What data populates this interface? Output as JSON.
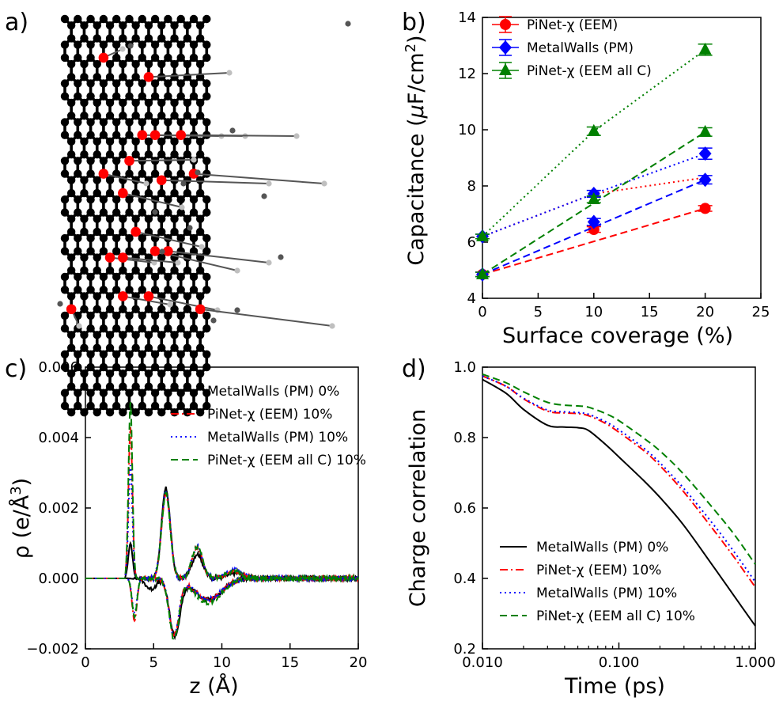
{
  "panel_labels": {
    "a": "a)",
    "b": "b)",
    "c": "c)",
    "d": "d)"
  },
  "colors": {
    "carbon": "#000000",
    "oxygen": "#ff0000",
    "hydrogen": "#bfbfbf",
    "red": "#ff0000",
    "blue": "#0000ff",
    "green": "#008000",
    "black": "#000000"
  },
  "chart_data": [
    {
      "panel": "a",
      "type": "other",
      "description_kind": "molecular structure",
      "atoms": [
        "carbon",
        "oxygen",
        "hydrogen"
      ]
    },
    {
      "panel": "b",
      "type": "line",
      "xlabel": "Surface coverage (%)",
      "ylabel": "Capacitance (",
      "ylabel_mu": "μ",
      "ylabel_rest": "F/cm",
      "ylabel_sup": "2",
      "ylabel_close": ")",
      "xlim": [
        0,
        25
      ],
      "ylim": [
        4,
        14
      ],
      "xticks": [
        0,
        5,
        10,
        15,
        20,
        25
      ],
      "yticks": [
        4,
        6,
        8,
        10,
        12,
        14
      ],
      "legend_position": "top-left",
      "series": [
        {
          "key": "eem",
          "name": "PiNet-χ (EEM)",
          "color": "red",
          "marker": "circle",
          "x": [
            0,
            10,
            20
          ],
          "y": [
            4.85,
            6.45,
            7.2
          ],
          "err": [
            0.08,
            0.1,
            0.1
          ],
          "fit_line": {
            "style": "dashed",
            "x": [
              0,
              20
            ],
            "y": [
              4.85,
              7.2
            ]
          },
          "aux_line": {
            "style": "dotted",
            "x": [
              0,
              10,
              20
            ],
            "y": [
              6.2,
              7.72,
              8.3
            ]
          }
        },
        {
          "key": "pm",
          "name": "MetalWalls (PM)",
          "color": "blue",
          "marker": "diamond",
          "x": [
            0,
            10,
            20
          ],
          "y": [
            4.85,
            6.72,
            8.22
          ],
          "err": [
            0.08,
            0.12,
            0.15
          ],
          "fit_line": {
            "style": "dashed",
            "x": [
              0,
              20
            ],
            "y": [
              4.85,
              8.22
            ]
          },
          "aux_line": {
            "style": "dotted",
            "x": [
              0,
              10,
              20
            ],
            "y": [
              6.2,
              7.72,
              9.15
            ]
          },
          "aux_markers": {
            "x": [
              0,
              10,
              20
            ],
            "y": [
              6.2,
              7.72,
              9.15
            ],
            "err": [
              0.08,
              0.12,
              0.2
            ]
          }
        },
        {
          "key": "allc",
          "name": "PiNet-χ (EEM all C)",
          "color": "green",
          "marker": "triangle",
          "x": [
            0,
            10,
            20
          ],
          "y": [
            4.85,
            7.52,
            9.92
          ],
          "err": [
            0.08,
            0.12,
            0.15
          ],
          "fit_line": {
            "style": "dashed",
            "x": [
              0,
              20
            ],
            "y": [
              4.85,
              9.92
            ]
          },
          "aux_line": {
            "style": "dotted",
            "x": [
              0,
              10,
              20
            ],
            "y": [
              6.2,
              9.95,
              12.85
            ]
          },
          "aux_markers": {
            "x": [
              0,
              10,
              20
            ],
            "y": [
              6.2,
              9.95,
              12.85
            ],
            "err": [
              0.08,
              0.15,
              0.2
            ]
          }
        }
      ],
      "legend": [
        "PiNet-χ (EEM)",
        "MetalWalls (PM)",
        "PiNet-χ (EEM all C)"
      ]
    },
    {
      "panel": "c",
      "type": "line",
      "xlabel": "z (Å)",
      "ylabel": "ρ (e/Å",
      "ylabel_sup": "3",
      "ylabel_close": ")",
      "xlim": [
        0,
        20
      ],
      "ylim": [
        -0.002,
        0.006
      ],
      "xticks": [
        0,
        5,
        10,
        15,
        20
      ],
      "xtick_labels": [
        "0",
        "5",
        "10",
        "15",
        "20"
      ],
      "yticks": [
        -0.002,
        0.0,
        0.002,
        0.004,
        0.006
      ],
      "ytick_labels": [
        "−0.002",
        "0.000",
        "0.002",
        "0.004",
        "0.006"
      ],
      "legend_position": "top-right",
      "series": [
        {
          "name": "MetalWalls (PM) 0%",
          "color": "black",
          "style": "solid",
          "pos_peaks": [
            [
              3.3,
              0.001,
              0.22
            ],
            [
              5.9,
              0.00255,
              0.45
            ],
            [
              8.2,
              0.0007,
              0.55
            ],
            [
              11.0,
              0.00015,
              0.8
            ]
          ],
          "neg_peaks": [
            [
              4.8,
              -0.0003,
              0.55
            ],
            [
              6.55,
              -0.0016,
              0.55
            ],
            [
              9.0,
              -0.0006,
              1.4
            ]
          ]
        },
        {
          "name": "PiNet-χ (EEM) 10%",
          "color": "red",
          "style": "dashdot",
          "pos_peaks": [
            [
              3.3,
              0.0043,
              0.2
            ],
            [
              5.9,
              0.0024,
              0.45
            ],
            [
              8.2,
              0.00085,
              0.55
            ],
            [
              10.9,
              0.0002,
              0.8
            ]
          ],
          "neg_peaks": [
            [
              3.6,
              -0.0012,
              0.25
            ],
            [
              6.5,
              -0.0016,
              0.5
            ],
            [
              9.0,
              -0.0006,
              1.4
            ]
          ]
        },
        {
          "name": "MetalWalls (PM) 10%",
          "color": "blue",
          "style": "dotted",
          "pos_peaks": [
            [
              3.3,
              0.0032,
              0.2
            ],
            [
              5.9,
              0.0025,
              0.45
            ],
            [
              8.2,
              0.0009,
              0.55
            ],
            [
              10.9,
              0.00025,
              0.8
            ]
          ],
          "neg_peaks": [
            [
              3.6,
              -0.001,
              0.25
            ],
            [
              6.5,
              -0.0016,
              0.5
            ],
            [
              9.0,
              -0.0006,
              1.4
            ]
          ]
        },
        {
          "name": "PiNet-χ (EEM all C) 10%",
          "color": "green",
          "style": "dashed",
          "pos_peaks": [
            [
              3.3,
              0.005,
              0.2
            ],
            [
              5.9,
              0.0024,
              0.45
            ],
            [
              8.2,
              0.0009,
              0.55
            ],
            [
              10.9,
              0.0002,
              0.8
            ]
          ],
          "neg_peaks": [
            [
              3.6,
              -0.0011,
              0.25
            ],
            [
              6.5,
              -0.0017,
              0.5
            ],
            [
              9.0,
              -0.0007,
              1.4
            ]
          ]
        }
      ]
    },
    {
      "panel": "d",
      "type": "line",
      "xscale": "log",
      "xlabel": "Time (ps)",
      "ylabel": "Charge correlation",
      "xlim": [
        0.01,
        1.0
      ],
      "ylim": [
        0.2,
        1.0
      ],
      "xticks": [
        0.01,
        0.1,
        1.0
      ],
      "xtick_labels": [
        "0.010",
        "0.100",
        "1.000"
      ],
      "yticks": [
        0.2,
        0.4,
        0.6,
        0.8,
        1.0
      ],
      "ytick_labels": [
        "0.2",
        "0.4",
        "0.6",
        "0.8",
        "1.0"
      ],
      "legend_position": "bottom-left",
      "series": [
        {
          "name": "MetalWalls (PM) 0%",
          "color": "black",
          "style": "solid",
          "x": [
            0.01,
            0.015,
            0.02,
            0.03,
            0.04,
            0.05,
            0.06,
            0.08,
            0.1,
            0.15,
            0.2,
            0.3,
            0.5,
            0.7,
            1.0
          ],
          "y": [
            0.965,
            0.925,
            0.88,
            0.835,
            0.83,
            0.828,
            0.82,
            0.78,
            0.745,
            0.68,
            0.63,
            0.55,
            0.43,
            0.35,
            0.265
          ]
        },
        {
          "name": "PiNet-χ (EEM) 10%",
          "color": "red",
          "style": "dashdot",
          "x": [
            0.01,
            0.015,
            0.02,
            0.03,
            0.04,
            0.05,
            0.06,
            0.08,
            0.1,
            0.15,
            0.2,
            0.3,
            0.5,
            0.7,
            1.0
          ],
          "y": [
            0.975,
            0.945,
            0.91,
            0.875,
            0.87,
            0.868,
            0.862,
            0.84,
            0.815,
            0.765,
            0.72,
            0.645,
            0.535,
            0.46,
            0.375
          ]
        },
        {
          "name": "MetalWalls (PM) 10%",
          "color": "blue",
          "style": "dotted",
          "x": [
            0.01,
            0.015,
            0.02,
            0.03,
            0.04,
            0.05,
            0.06,
            0.08,
            0.1,
            0.15,
            0.2,
            0.3,
            0.5,
            0.7,
            1.0
          ],
          "y": [
            0.975,
            0.945,
            0.912,
            0.878,
            0.873,
            0.871,
            0.866,
            0.845,
            0.822,
            0.772,
            0.728,
            0.655,
            0.55,
            0.475,
            0.39
          ]
        },
        {
          "name": "PiNet-χ (EEM all C) 10%",
          "color": "green",
          "style": "dashed",
          "x": [
            0.01,
            0.015,
            0.02,
            0.03,
            0.04,
            0.05,
            0.06,
            0.08,
            0.1,
            0.15,
            0.2,
            0.3,
            0.5,
            0.7,
            1.0
          ],
          "y": [
            0.98,
            0.955,
            0.93,
            0.9,
            0.892,
            0.89,
            0.886,
            0.868,
            0.848,
            0.8,
            0.762,
            0.695,
            0.595,
            0.525,
            0.44
          ]
        }
      ]
    }
  ]
}
